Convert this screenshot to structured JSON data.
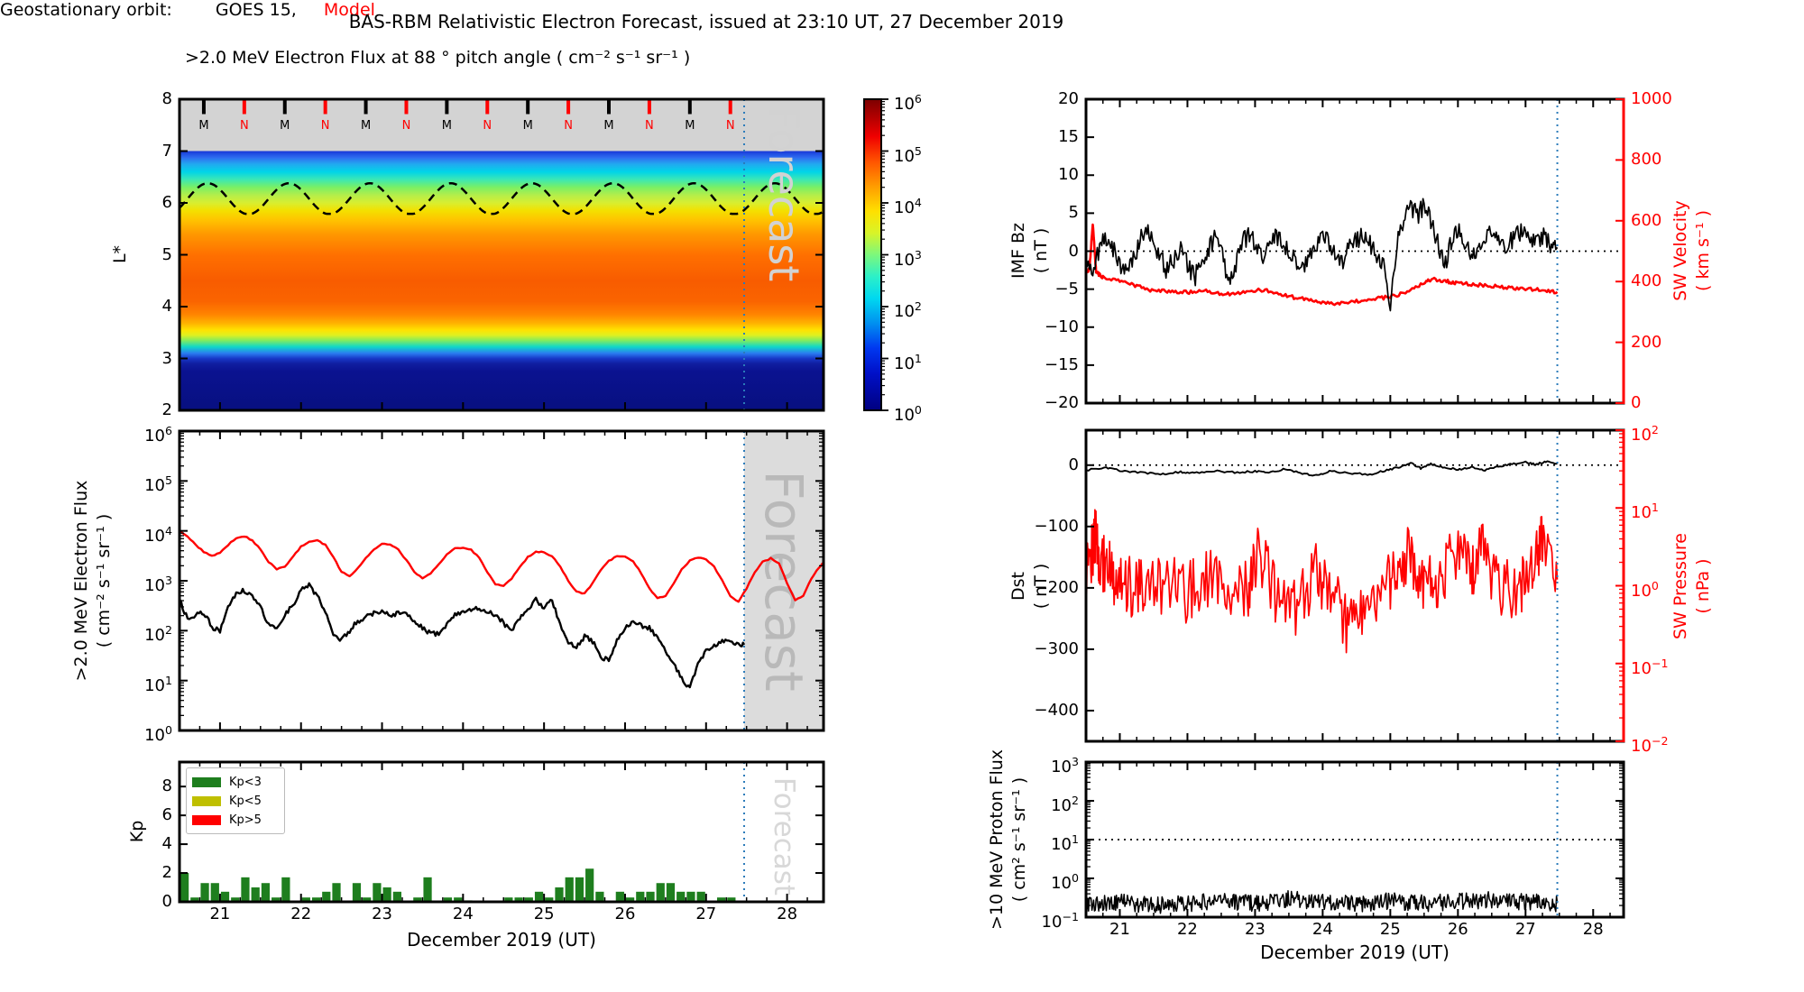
{
  "title": "BAS-RBM Relativistic Electron Forecast, issued at 23:10 UT, 27 December 2019",
  "xaxis": {
    "label": "December 2019 (UT)",
    "ticks": [
      21,
      22,
      23,
      24,
      25,
      26,
      27,
      28
    ],
    "range": [
      20.5,
      28.45
    ],
    "forecast_start": 27.47
  },
  "colors": {
    "red": "#ff0000",
    "black": "#000000",
    "forecast_line": "#2b7bba",
    "forecast_shade": "#dcdcdc",
    "gray_band": "#d3d3d3",
    "watermark_p1": "#d2d2d2",
    "watermark_p2": "#b9b9b9",
    "watermark_p3": "#d8d8d8",
    "kp_green": "#1e7e1e",
    "kp_yellow": "#bfbf00",
    "kp_red": "#ff0000"
  },
  "chart_data": [
    {
      "id": "lstar_heatmap",
      "type": "heatmap",
      "title": ">2.0 MeV Electron Flux at 88 ° pitch angle ( cm⁻² s⁻¹ sr⁻¹ )",
      "ylabel": "L*",
      "y_range": [
        2,
        8
      ],
      "yticks": [
        8,
        7,
        6,
        5,
        4,
        3,
        2
      ],
      "top_band": {
        "from_l": 7,
        "to_l": 8,
        "midnight_label": "M",
        "noon_label": "N",
        "midnight_days": [
          20.8,
          21.8,
          22.8,
          23.8,
          24.8,
          25.8,
          26.8
        ],
        "noon_days": [
          21.3,
          22.3,
          23.3,
          24.3,
          25.3,
          26.3,
          27.3
        ]
      },
      "dashed_line": {
        "mean": 6.08,
        "amplitude": 0.3,
        "period_days": 1.0,
        "peak_day": 20.85,
        "floor": 5.79
      },
      "watermark": "Forecast",
      "gradient_stops": [
        [
          "0",
          "#1838d8"
        ],
        [
          "2.5",
          "#2e6cf0"
        ],
        [
          "5",
          "#22a8f0"
        ],
        [
          "8",
          "#00d4e8"
        ],
        [
          "11",
          "#3ce8b4"
        ],
        [
          "14",
          "#7af064"
        ],
        [
          "17",
          "#b4ee4a"
        ],
        [
          "20",
          "#d8ee30"
        ],
        [
          "23",
          "#f4e000"
        ],
        [
          "27",
          "#ffc000"
        ],
        [
          "32",
          "#ff9800"
        ],
        [
          "40",
          "#ff7000"
        ],
        [
          "50",
          "#f85c00"
        ],
        [
          "58",
          "#fa6400"
        ],
        [
          "63",
          "#ff8400"
        ],
        [
          "66.5",
          "#ffb400"
        ],
        [
          "69",
          "#ffe200"
        ],
        [
          "71",
          "#e0f020"
        ],
        [
          "73",
          "#84ec5c"
        ],
        [
          "75.5",
          "#10d8c8"
        ],
        [
          "78",
          "#2a7cf0"
        ],
        [
          "80",
          "#1838c8"
        ],
        [
          "82",
          "#101ea0"
        ],
        [
          "85",
          "#0a1290"
        ],
        [
          "100",
          "#081080"
        ]
      ],
      "colorbar": {
        "tick_exponents": [
          6,
          5,
          4,
          3,
          2,
          1,
          0
        ],
        "gradient_stops": [
          [
            "0",
            "#7c0000"
          ],
          [
            "6",
            "#b40000"
          ],
          [
            "12",
            "#f00000"
          ],
          [
            "20",
            "#ff5400"
          ],
          [
            "28",
            "#ff9c00"
          ],
          [
            "36",
            "#ffe000"
          ],
          [
            "43",
            "#d8f428"
          ],
          [
            "50",
            "#7cf87c"
          ],
          [
            "57",
            "#2cf0c8"
          ],
          [
            "64",
            "#00d8f0"
          ],
          [
            "72",
            "#0090f0"
          ],
          [
            "80",
            "#0038f0"
          ],
          [
            "88",
            "#0010c8"
          ],
          [
            "100",
            "#000080"
          ]
        ]
      }
    },
    {
      "id": "electron_flux",
      "type": "line",
      "yscale": "log",
      "legend": {
        "prefix": "Geostationary orbit:",
        "obs": "GOES 15,",
        "model": "Model"
      },
      "ylabel1": ">2.0 MeV Electron Flux",
      "ylabel2": "( cm⁻² s⁻¹ sr⁻¹ )",
      "ytick_exponents": [
        6,
        5,
        4,
        3,
        2,
        1,
        0
      ],
      "y_exp_range": [
        0,
        6
      ],
      "watermark": "Forecast",
      "forecast_shaded": true,
      "series": [
        {
          "name": "GOES 15",
          "color": "#000000",
          "width": 2.4,
          "t0": 20.5,
          "dt": 0.1,
          "log_interp": true,
          "noise_log": 0.05,
          "subdiv": 5,
          "values": [
            420,
            170,
            200,
            230,
            120,
            95,
            320,
            580,
            640,
            480,
            300,
            130,
            115,
            210,
            330,
            650,
            820,
            500,
            250,
            90,
            65,
            100,
            155,
            180,
            235,
            245,
            210,
            225,
            235,
            160,
            110,
            90,
            85,
            135,
            205,
            245,
            265,
            285,
            250,
            205,
            145,
            95,
            185,
            255,
            410,
            300,
            390,
            130,
            55,
            48,
            75,
            62,
            28,
            26,
            65,
            115,
            140,
            128,
            115,
            75,
            38,
            22,
            11,
            7,
            22,
            38,
            52,
            62,
            58,
            54
          ],
          "t_end": 27.47,
          "v_end": 52
        },
        {
          "name": "Model",
          "color": "#ff0000",
          "width": 2.4,
          "t0": 20.5,
          "dt": 0.1,
          "log_interp": true,
          "noise_log": 0.012,
          "subdiv": 3,
          "values": [
            10000,
            7800,
            5200,
            3800,
            3200,
            3600,
            5200,
            7200,
            7800,
            6500,
            4200,
            2400,
            1700,
            1900,
            3000,
            4800,
            6200,
            6400,
            5200,
            3000,
            1500,
            1250,
            1800,
            2900,
            4300,
            5400,
            5300,
            4200,
            2600,
            1500,
            1150,
            1400,
            2200,
            3300,
            4400,
            4700,
            4200,
            2900,
            1500,
            850,
            800,
            1100,
            1900,
            3000,
            3800,
            3800,
            3100,
            1900,
            1000,
            600,
            550,
            900,
            1600,
            2500,
            3100,
            3100,
            2500,
            1400,
            700,
            450,
            500,
            900,
            1700,
            2500,
            2900,
            2700,
            1900,
            1000,
            500,
            380,
            700,
            1500,
            2400,
            2800,
            2200,
            900,
            400,
            500,
            1100,
            1900
          ],
          "t_end": 28.45,
          "v_end": 2300
        }
      ]
    },
    {
      "id": "kp",
      "type": "bar",
      "ylabel": "Kp",
      "y_range": [
        0,
        9.7
      ],
      "yticks": [
        8,
        6,
        4,
        2,
        0
      ],
      "bar_start_day": 20.5,
      "bar_step_days": 0.125,
      "watermark": "Forecast",
      "values": [
        2.0,
        0.3,
        1.3,
        1.3,
        0.7,
        0.3,
        1.7,
        1.0,
        1.3,
        0.3,
        1.7,
        0,
        0.3,
        0.3,
        0.7,
        1.3,
        0,
        1.3,
        0.3,
        1.3,
        1.0,
        0.7,
        0,
        0.3,
        1.7,
        0,
        0.3,
        0.3,
        0.1,
        0,
        0,
        0,
        0.3,
        0.3,
        0.3,
        0.7,
        0.3,
        1.0,
        1.7,
        1.7,
        2.3,
        0.7,
        0,
        0.7,
        0.3,
        0.7,
        0.7,
        1.3,
        1.3,
        0.7,
        0.7,
        0.7,
        0,
        0.3,
        0.3,
        0
      ],
      "legend": [
        {
          "label": "Kp<3",
          "color": "#1e7e1e"
        },
        {
          "label": "Kp<5",
          "color": "#bfbf00"
        },
        {
          "label": "Kp>5",
          "color": "#ff0000"
        }
      ],
      "thresholds": {
        "low_max": 3,
        "mid_max": 5
      }
    },
    {
      "id": "imf_sw",
      "type": "dual_line",
      "left_axis": {
        "label1": "IMF Bz",
        "label2": "( nT )",
        "range": [
          -20,
          20
        ],
        "ticks": [
          20,
          15,
          10,
          5,
          0,
          -5,
          -10,
          -15,
          -20
        ],
        "zero_dotted": true,
        "color": "#000000"
      },
      "right_axis": {
        "label1": "SW Velocity",
        "label2": "( km s⁻¹ )",
        "range": [
          0,
          1000
        ],
        "ticks": [
          1000,
          800,
          600,
          400,
          200,
          0
        ],
        "color": "#ff0000"
      },
      "series": [
        {
          "name": "IMF Bz",
          "axis": "left",
          "color": "#000000",
          "width": 1.7,
          "t0": 20.5,
          "dt": 0.1,
          "noise": 1.3,
          "subdiv": 6,
          "values": [
            -1.5,
            -2.5,
            0.5,
            2,
            0.5,
            -2,
            -3,
            -1,
            1.5,
            2.5,
            1,
            -1,
            -2.5,
            -1,
            0.5,
            -1.5,
            -3.5,
            -2,
            0,
            1.5,
            0.5,
            -5,
            -2,
            1,
            2,
            1,
            -1,
            1,
            2,
            1,
            0,
            -1.5,
            -2.5,
            -0.5,
            1,
            2,
            1,
            0,
            -1.5,
            0.5,
            1.5,
            2,
            1,
            -0.5,
            -2,
            -7,
            1,
            4,
            6,
            4.5,
            6,
            4,
            1.5,
            -2,
            1,
            2.5,
            1.5,
            -1,
            0.5,
            2,
            2.5,
            1.5,
            0.5,
            1.5,
            2.5,
            2,
            1,
            1.5,
            2,
            0.5
          ],
          "t_end": 27.47,
          "v_end": 0.5
        },
        {
          "name": "SW Velocity",
          "axis": "right",
          "color": "#ff0000",
          "width": 2.6,
          "noise": 6,
          "subdiv": 10,
          "t": [
            20.5,
            20.55,
            20.6,
            20.65,
            20.75,
            21.0,
            21.25,
            21.5,
            21.75,
            22.0,
            22.25,
            22.5,
            22.75,
            23.0,
            23.25,
            23.5,
            23.75,
            24.0,
            24.25,
            24.5,
            24.75,
            25.0,
            25.25,
            25.5,
            25.65,
            25.85,
            26.0,
            26.25,
            26.5,
            26.75,
            27.0,
            27.25,
            27.47
          ],
          "values": [
            430,
            440,
            590,
            430,
            415,
            400,
            385,
            370,
            368,
            365,
            370,
            358,
            360,
            372,
            368,
            352,
            340,
            332,
            326,
            335,
            342,
            350,
            365,
            398,
            408,
            400,
            395,
            390,
            385,
            380,
            376,
            372,
            366
          ]
        }
      ]
    },
    {
      "id": "dst_pressure",
      "type": "dual_line",
      "left_axis": {
        "label1": "Dst",
        "label2": "( nT )",
        "range": [
          -450,
          57
        ],
        "ticks": [
          0,
          -100,
          -200,
          -300,
          -400
        ],
        "zero_dotted": true,
        "color": "#000000"
      },
      "right_axis": {
        "label1": "SW Pressure",
        "label2": "( nPa )",
        "scale": "log",
        "tick_exponents": [
          2,
          1,
          0,
          -1,
          -2
        ],
        "exp_range": [
          -2,
          2
        ],
        "color": "#ff0000"
      },
      "series": [
        {
          "name": "Dst",
          "axis": "left",
          "color": "#000000",
          "width": 1.9,
          "noise": 1.5,
          "subdiv": 8,
          "t": [
            20.5,
            20.8,
            21.0,
            21.3,
            21.6,
            21.9,
            22.1,
            22.4,
            22.7,
            23.0,
            23.2,
            23.45,
            23.7,
            23.9,
            24.1,
            24.4,
            24.7,
            24.95,
            25.15,
            25.3,
            25.45,
            25.6,
            25.8,
            26.0,
            26.2,
            26.4,
            26.6,
            26.8,
            27.0,
            27.15,
            27.3,
            27.47
          ],
          "values": [
            -8,
            -4,
            -9,
            -12,
            -15,
            -11,
            -13,
            -9,
            -12,
            -10,
            -13,
            -6,
            -14,
            -17,
            -10,
            -13,
            -15,
            -8,
            -3,
            3,
            -5,
            2,
            -4,
            -7,
            -4,
            -8,
            -3,
            2,
            5,
            1,
            6,
            3
          ]
        },
        {
          "name": "SW Pressure",
          "axis": "right",
          "color": "#ff0000",
          "width": 1.7,
          "log_interp": true,
          "noise_log": 0.4,
          "subdiv": 14,
          "t": [
            20.5,
            20.6,
            20.65,
            20.7,
            20.85,
            21.0,
            21.2,
            21.4,
            21.7,
            22.0,
            22.3,
            22.6,
            22.9,
            23.05,
            23.3,
            23.6,
            23.9,
            24.1,
            24.35,
            24.6,
            24.9,
            25.1,
            25.3,
            25.5,
            25.7,
            25.95,
            26.2,
            26.35,
            26.6,
            26.9,
            27.1,
            27.25,
            27.47
          ],
          "values": [
            1.2,
            3.0,
            5.5,
            2.0,
            1.5,
            1.2,
            0.9,
            1.0,
            1.1,
            0.8,
            1.3,
            0.7,
            1.0,
            2.5,
            0.8,
            0.5,
            1.5,
            0.9,
            0.3,
            0.6,
            1.0,
            1.5,
            2.5,
            1.2,
            1.0,
            3.0,
            1.5,
            2.8,
            1.0,
            0.8,
            1.5,
            3.5,
            1.2
          ]
        }
      ]
    },
    {
      "id": "proton_flux",
      "type": "line",
      "yscale": "log",
      "ylabel1": ">10 MeV Proton Flux",
      "ylabel2": "( cm² s⁻¹ sr⁻¹ )",
      "ytick_exponents": [
        3,
        2,
        1,
        0,
        -1
      ],
      "y_exp_range": [
        -1,
        3
      ],
      "hline_exponent": 1,
      "series": [
        {
          "name": ">10 MeV Proton Flux",
          "color": "#000000",
          "width": 1.5,
          "t0": 20.5,
          "dt": 0.5,
          "log_interp": true,
          "noise_log": 0.22,
          "subdiv": 40,
          "values": [
            0.22,
            0.24,
            0.2,
            0.23,
            0.25,
            0.22,
            0.3,
            0.24,
            0.22,
            0.26,
            0.23,
            0.25,
            0.28,
            0.24
          ],
          "t_end": 27.47,
          "v_end": 0.23
        }
      ]
    }
  ]
}
